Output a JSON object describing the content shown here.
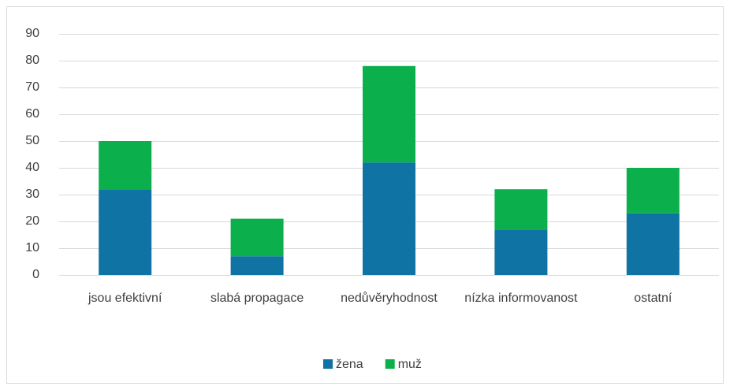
{
  "chart_data": {
    "type": "stacked_bar",
    "categories": [
      "jsou efektivní",
      "slabá propagace",
      "nedůvěryhodnost",
      "nízka informovanost",
      "ostatní"
    ],
    "series": [
      {
        "name": "žena",
        "color": "#0f73a3",
        "values": [
          32,
          7,
          42,
          17,
          23
        ]
      },
      {
        "name": "muž",
        "color": "#0bb04c",
        "values": [
          18,
          14,
          36,
          15,
          17
        ]
      }
    ],
    "ylim": [
      0,
      90
    ],
    "yticks": [
      0,
      10,
      20,
      30,
      40,
      50,
      60,
      70,
      80,
      90
    ],
    "grid": true,
    "legend": "bottom"
  }
}
